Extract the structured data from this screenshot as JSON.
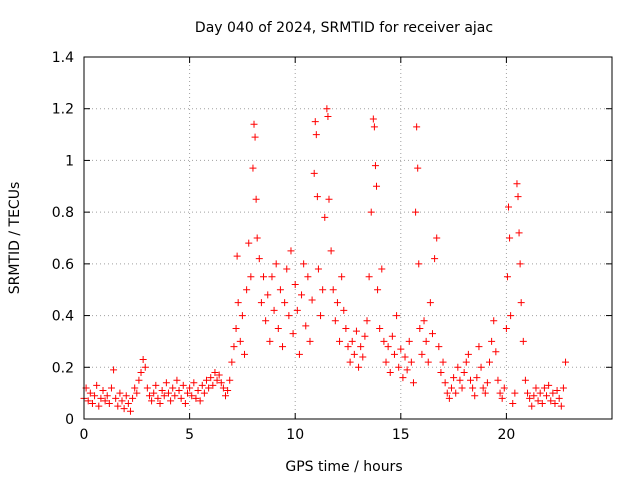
{
  "chart_data": {
    "type": "scatter",
    "title": "Day 040 of 2024, SRMTID for receiver ajac",
    "xlabel": "GPS time / hours",
    "ylabel": "SRMTID / TECUs",
    "xlim": [
      0,
      25
    ],
    "ylim": [
      0,
      1.4
    ],
    "xticks": [
      0,
      5,
      10,
      15,
      20
    ],
    "xtick_labels": [
      "0",
      "5",
      "10",
      "15",
      "20"
    ],
    "yticks": [
      0,
      0.2,
      0.4,
      0.6,
      0.8,
      1,
      1.2,
      1.4
    ],
    "ytick_labels": [
      "0",
      "0.2",
      "0.4",
      "0.6",
      "0.8",
      "1",
      "1.2",
      "1.4"
    ],
    "grid": true,
    "marker": "plus",
    "color": "#ff0000",
    "series": [
      {
        "name": "SRMTID",
        "points": [
          [
            0.0,
            0.08
          ],
          [
            0.1,
            0.12
          ],
          [
            0.2,
            0.07
          ],
          [
            0.3,
            0.1
          ],
          [
            0.4,
            0.06
          ],
          [
            0.5,
            0.09
          ],
          [
            0.6,
            0.13
          ],
          [
            0.7,
            0.05
          ],
          [
            0.8,
            0.08
          ],
          [
            0.9,
            0.11
          ],
          [
            1.0,
            0.07
          ],
          [
            1.1,
            0.09
          ],
          [
            1.2,
            0.06
          ],
          [
            1.3,
            0.12
          ],
          [
            1.4,
            0.19
          ],
          [
            1.5,
            0.08
          ],
          [
            1.6,
            0.05
          ],
          [
            1.7,
            0.1
          ],
          [
            1.8,
            0.07
          ],
          [
            1.9,
            0.04
          ],
          [
            2.0,
            0.09
          ],
          [
            2.1,
            0.06
          ],
          [
            2.2,
            0.03
          ],
          [
            2.3,
            0.08
          ],
          [
            2.4,
            0.12
          ],
          [
            2.5,
            0.1
          ],
          [
            2.6,
            0.15
          ],
          [
            2.7,
            0.18
          ],
          [
            2.8,
            0.23
          ],
          [
            2.9,
            0.2
          ],
          [
            3.0,
            0.12
          ],
          [
            3.1,
            0.09
          ],
          [
            3.2,
            0.07
          ],
          [
            3.3,
            0.1
          ],
          [
            3.4,
            0.13
          ],
          [
            3.5,
            0.08
          ],
          [
            3.6,
            0.06
          ],
          [
            3.7,
            0.11
          ],
          [
            3.8,
            0.09
          ],
          [
            3.9,
            0.14
          ],
          [
            4.0,
            0.1
          ],
          [
            4.1,
            0.07
          ],
          [
            4.2,
            0.12
          ],
          [
            4.3,
            0.09
          ],
          [
            4.4,
            0.15
          ],
          [
            4.5,
            0.11
          ],
          [
            4.6,
            0.08
          ],
          [
            4.7,
            0.13
          ],
          [
            4.8,
            0.06
          ],
          [
            4.9,
            0.1
          ],
          [
            5.0,
            0.12
          ],
          [
            5.1,
            0.09
          ],
          [
            5.2,
            0.14
          ],
          [
            5.3,
            0.08
          ],
          [
            5.4,
            0.11
          ],
          [
            5.5,
            0.07
          ],
          [
            5.6,
            0.13
          ],
          [
            5.7,
            0.1
          ],
          [
            5.8,
            0.15
          ],
          [
            5.9,
            0.12
          ],
          [
            6.0,
            0.16
          ],
          [
            6.1,
            0.13
          ],
          [
            6.2,
            0.18
          ],
          [
            6.3,
            0.15
          ],
          [
            6.4,
            0.17
          ],
          [
            6.5,
            0.14
          ],
          [
            6.6,
            0.12
          ],
          [
            6.7,
            0.09
          ],
          [
            6.8,
            0.11
          ],
          [
            6.9,
            0.15
          ],
          [
            7.0,
            0.22
          ],
          [
            7.1,
            0.28
          ],
          [
            7.2,
            0.35
          ],
          [
            7.25,
            0.63
          ],
          [
            7.3,
            0.45
          ],
          [
            7.4,
            0.3
          ],
          [
            7.5,
            0.4
          ],
          [
            7.6,
            0.25
          ],
          [
            7.7,
            0.5
          ],
          [
            7.8,
            0.68
          ],
          [
            7.9,
            0.55
          ],
          [
            8.0,
            0.97
          ],
          [
            8.05,
            1.14
          ],
          [
            8.1,
            1.09
          ],
          [
            8.15,
            0.85
          ],
          [
            8.2,
            0.7
          ],
          [
            8.3,
            0.62
          ],
          [
            8.4,
            0.45
          ],
          [
            8.5,
            0.55
          ],
          [
            8.6,
            0.38
          ],
          [
            8.7,
            0.48
          ],
          [
            8.8,
            0.3
          ],
          [
            8.9,
            0.55
          ],
          [
            9.0,
            0.42
          ],
          [
            9.1,
            0.6
          ],
          [
            9.2,
            0.35
          ],
          [
            9.3,
            0.5
          ],
          [
            9.4,
            0.28
          ],
          [
            9.5,
            0.45
          ],
          [
            9.6,
            0.58
          ],
          [
            9.7,
            0.4
          ],
          [
            9.8,
            0.65
          ],
          [
            9.9,
            0.33
          ],
          [
            10.0,
            0.52
          ],
          [
            10.1,
            0.42
          ],
          [
            10.2,
            0.25
          ],
          [
            10.3,
            0.48
          ],
          [
            10.4,
            0.6
          ],
          [
            10.5,
            0.36
          ],
          [
            10.6,
            0.55
          ],
          [
            10.7,
            0.3
          ],
          [
            10.8,
            0.46
          ],
          [
            10.9,
            0.95
          ],
          [
            10.95,
            1.15
          ],
          [
            11.0,
            1.1
          ],
          [
            11.05,
            0.86
          ],
          [
            11.1,
            0.58
          ],
          [
            11.2,
            0.4
          ],
          [
            11.3,
            0.5
          ],
          [
            11.4,
            0.78
          ],
          [
            11.5,
            1.2
          ],
          [
            11.55,
            1.17
          ],
          [
            11.6,
            0.85
          ],
          [
            11.7,
            0.65
          ],
          [
            11.8,
            0.5
          ],
          [
            11.9,
            0.38
          ],
          [
            12.0,
            0.45
          ],
          [
            12.1,
            0.3
          ],
          [
            12.2,
            0.55
          ],
          [
            12.3,
            0.42
          ],
          [
            12.4,
            0.35
          ],
          [
            12.5,
            0.28
          ],
          [
            12.6,
            0.22
          ],
          [
            12.7,
            0.3
          ],
          [
            12.8,
            0.25
          ],
          [
            12.9,
            0.34
          ],
          [
            13.0,
            0.2
          ],
          [
            13.1,
            0.28
          ],
          [
            13.2,
            0.24
          ],
          [
            13.3,
            0.32
          ],
          [
            13.4,
            0.38
          ],
          [
            13.5,
            0.55
          ],
          [
            13.6,
            0.8
          ],
          [
            13.7,
            1.16
          ],
          [
            13.75,
            1.13
          ],
          [
            13.8,
            0.98
          ],
          [
            13.85,
            0.9
          ],
          [
            13.9,
            0.5
          ],
          [
            14.0,
            0.35
          ],
          [
            14.1,
            0.58
          ],
          [
            14.2,
            0.3
          ],
          [
            14.3,
            0.22
          ],
          [
            14.4,
            0.28
          ],
          [
            14.5,
            0.18
          ],
          [
            14.6,
            0.32
          ],
          [
            14.7,
            0.25
          ],
          [
            14.8,
            0.4
          ],
          [
            14.9,
            0.2
          ],
          [
            15.0,
            0.27
          ],
          [
            15.1,
            0.16
          ],
          [
            15.2,
            0.24
          ],
          [
            15.3,
            0.19
          ],
          [
            15.4,
            0.3
          ],
          [
            15.5,
            0.22
          ],
          [
            15.6,
            0.14
          ],
          [
            15.7,
            0.8
          ],
          [
            15.75,
            1.13
          ],
          [
            15.8,
            0.97
          ],
          [
            15.85,
            0.6
          ],
          [
            15.9,
            0.35
          ],
          [
            16.0,
            0.25
          ],
          [
            16.1,
            0.38
          ],
          [
            16.2,
            0.3
          ],
          [
            16.3,
            0.22
          ],
          [
            16.4,
            0.45
          ],
          [
            16.5,
            0.33
          ],
          [
            16.6,
            0.62
          ],
          [
            16.7,
            0.7
          ],
          [
            16.8,
            0.28
          ],
          [
            16.9,
            0.18
          ],
          [
            17.0,
            0.22
          ],
          [
            17.1,
            0.14
          ],
          [
            17.2,
            0.1
          ],
          [
            17.3,
            0.08
          ],
          [
            17.4,
            0.12
          ],
          [
            17.5,
            0.16
          ],
          [
            17.6,
            0.1
          ],
          [
            17.7,
            0.2
          ],
          [
            17.8,
            0.15
          ],
          [
            17.9,
            0.12
          ],
          [
            18.0,
            0.18
          ],
          [
            18.1,
            0.22
          ],
          [
            18.2,
            0.25
          ],
          [
            18.3,
            0.15
          ],
          [
            18.4,
            0.12
          ],
          [
            18.5,
            0.09
          ],
          [
            18.6,
            0.16
          ],
          [
            18.7,
            0.28
          ],
          [
            18.8,
            0.2
          ],
          [
            18.9,
            0.12
          ],
          [
            19.0,
            0.1
          ],
          [
            19.1,
            0.14
          ],
          [
            19.2,
            0.22
          ],
          [
            19.3,
            0.3
          ],
          [
            19.4,
            0.38
          ],
          [
            19.5,
            0.26
          ],
          [
            19.6,
            0.15
          ],
          [
            19.7,
            0.1
          ],
          [
            19.8,
            0.08
          ],
          [
            19.9,
            0.12
          ],
          [
            20.0,
            0.35
          ],
          [
            20.05,
            0.55
          ],
          [
            20.1,
            0.82
          ],
          [
            20.15,
            0.7
          ],
          [
            20.2,
            0.4
          ],
          [
            20.3,
            0.06
          ],
          [
            20.4,
            0.1
          ],
          [
            20.5,
            0.91
          ],
          [
            20.55,
            0.86
          ],
          [
            20.6,
            0.72
          ],
          [
            20.65,
            0.6
          ],
          [
            20.7,
            0.45
          ],
          [
            20.8,
            0.3
          ],
          [
            20.9,
            0.15
          ],
          [
            21.0,
            0.1
          ],
          [
            21.1,
            0.08
          ],
          [
            21.2,
            0.05
          ],
          [
            21.3,
            0.09
          ],
          [
            21.4,
            0.12
          ],
          [
            21.5,
            0.07
          ],
          [
            21.6,
            0.1
          ],
          [
            21.7,
            0.06
          ],
          [
            21.8,
            0.12
          ],
          [
            21.9,
            0.09
          ],
          [
            22.0,
            0.13
          ],
          [
            22.1,
            0.07
          ],
          [
            22.2,
            0.1
          ],
          [
            22.3,
            0.06
          ],
          [
            22.4,
            0.11
          ],
          [
            22.5,
            0.08
          ],
          [
            22.6,
            0.05
          ],
          [
            22.7,
            0.12
          ],
          [
            22.8,
            0.22
          ]
        ]
      }
    ]
  }
}
